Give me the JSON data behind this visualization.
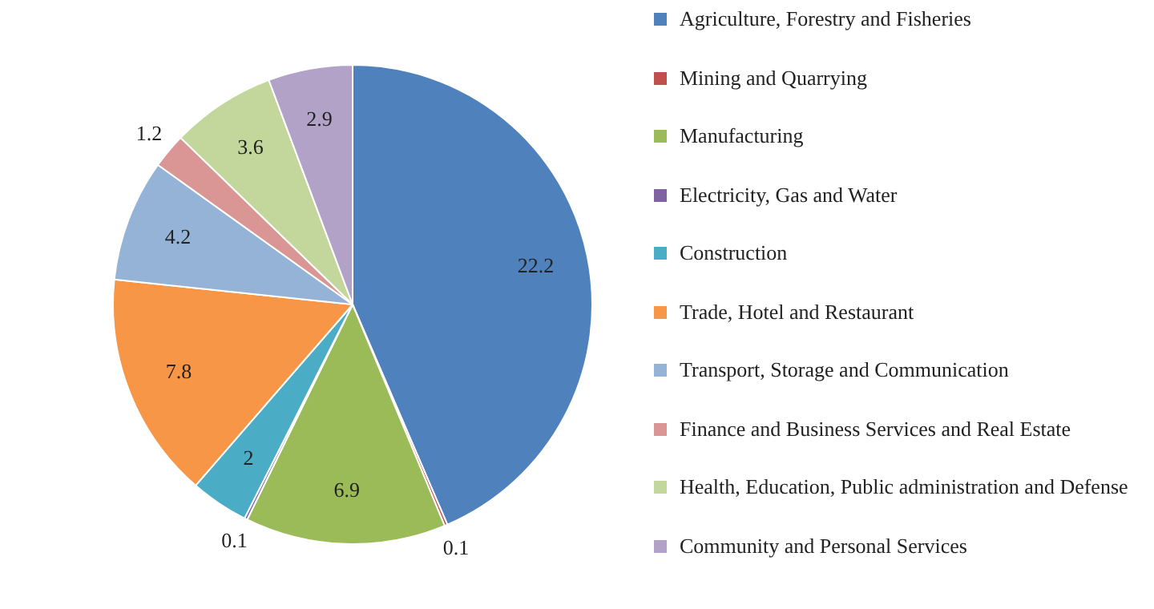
{
  "chart_data": {
    "type": "pie",
    "categories": [
      "Agriculture, Forestry and Fisheries",
      "Mining and Quarrying",
      "Manufacturing",
      "Electricity, Gas and Water",
      "Construction",
      "Trade, Hotel and Restaurant",
      "Transport, Storage and Communication",
      "Finance and Business Services and Real Estate",
      "Health, Education, Public administration and Defense",
      "Community and Personal Services"
    ],
    "values": [
      22.2,
      0.1,
      6.9,
      0.1,
      2,
      7.8,
      4.2,
      1.2,
      3.6,
      2.9
    ],
    "colors": [
      "#4f81bd",
      "#c0504d",
      "#9bbb59",
      "#8064a2",
      "#4bacc6",
      "#f79646",
      "#95b3d7",
      "#d99694",
      "#c3d69b",
      "#b3a2c7"
    ],
    "data_labels": true,
    "legend": "right"
  }
}
